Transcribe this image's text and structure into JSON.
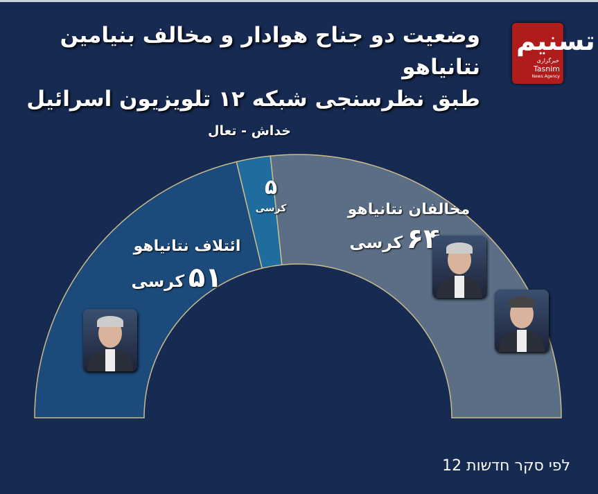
{
  "title": {
    "line1": "وضعیت دو جناح هوادار و مخالف بنیامین نتانیاهو",
    "line2": "طبق نظرسنجی شبکه ۱۲ تلویزیون اسرائیل"
  },
  "logo": {
    "mark": "تسنیم",
    "fa": "خبرگزاری",
    "en": "Tasnim",
    "en2": "News Agency"
  },
  "colors": {
    "background": "#162a52",
    "coalition": "#1b4a7b",
    "hadash_taal": "#1e6d9e",
    "opposition": "#5b6e86",
    "divider": "#cbbd8c",
    "logo": "#b01c1c"
  },
  "chart_data": {
    "type": "pie",
    "shape": "half-donut",
    "total": 120,
    "segments": [
      {
        "name": "ائتلاف نتانیاهو",
        "value": 51,
        "value_label": "۵۱",
        "unit": "کرسی",
        "color": "#1b4a7b"
      },
      {
        "name": "خداش - تعال",
        "value": 5,
        "value_label": "۵",
        "unit": "کرسی",
        "color": "#1e6d9e"
      },
      {
        "name": "مخالفان نتانیاهو",
        "value": 64,
        "value_label": "۶۴",
        "unit": "کرسی",
        "color": "#5b6e86"
      }
    ]
  },
  "photos": [
    "netanyahu-photo",
    "gantz-photo",
    "lapid-photo"
  ],
  "footer": "לפי סקר חדשות 12"
}
